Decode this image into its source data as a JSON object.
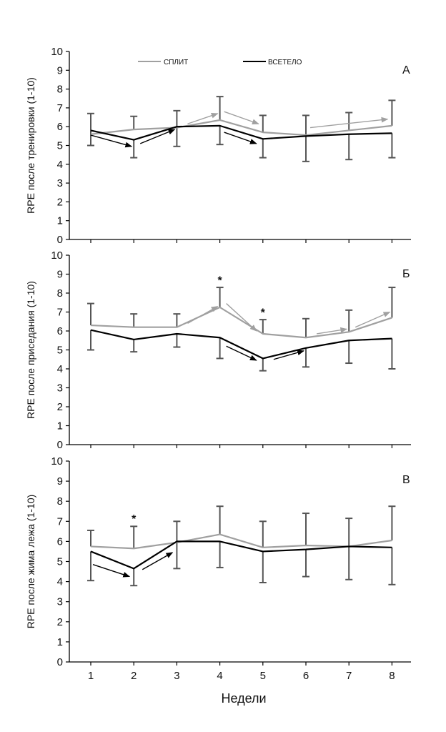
{
  "x_label": "Недели",
  "legend": [
    {
      "label": "СПЛИТ",
      "color": "#a0a0a0"
    },
    {
      "label": "ВСЕТЕЛО",
      "color": "#000000"
    }
  ],
  "chart_data": [
    {
      "type": "line",
      "panel_letter": "А",
      "ylabel": "RPE после тренировки  (1-10)",
      "ylim": [
        0,
        10
      ],
      "x": [
        1,
        2,
        3,
        4,
        5,
        6,
        7,
        8
      ],
      "series": [
        {
          "name": "СПЛИТ",
          "color": "#a0a0a0",
          "values": [
            5.6,
            5.85,
            5.95,
            6.35,
            5.7,
            5.55,
            5.8,
            6.05
          ],
          "error_upper": [
            6.7,
            6.55,
            6.85,
            7.6,
            6.6,
            6.6,
            6.75,
            7.4
          ]
        },
        {
          "name": "ВСЕТЕЛО",
          "color": "#000000",
          "values": [
            5.8,
            5.3,
            6.0,
            6.05,
            5.35,
            5.5,
            5.6,
            5.65
          ],
          "error_lower": [
            5.0,
            4.35,
            4.95,
            5.05,
            4.35,
            4.15,
            4.25,
            4.35
          ]
        }
      ],
      "significance_marks": [],
      "trend_arrows": [
        {
          "series": "ВСЕТЕЛО",
          "from": [
            1.0,
            5.55
          ],
          "to": [
            1.95,
            4.95
          ]
        },
        {
          "series": "ВСЕТЕЛО",
          "from": [
            2.15,
            5.1
          ],
          "to": [
            2.95,
            5.85
          ]
        },
        {
          "series": "СПЛИТ",
          "from": [
            3.25,
            6.15
          ],
          "to": [
            3.95,
            6.7
          ]
        },
        {
          "series": "СПЛИТ",
          "from": [
            4.1,
            6.8
          ],
          "to": [
            4.9,
            6.15
          ]
        },
        {
          "series": "ВСЕТЕЛО",
          "from": [
            4.1,
            5.7
          ],
          "to": [
            4.85,
            5.1
          ]
        },
        {
          "series": "СПЛИТ",
          "from": [
            6.1,
            5.95
          ],
          "to": [
            7.9,
            6.4
          ]
        }
      ]
    },
    {
      "type": "line",
      "panel_letter": "Б",
      "ylabel": "RPE после приседания  (1-10)",
      "ylim": [
        0,
        10
      ],
      "x": [
        1,
        2,
        3,
        4,
        5,
        6,
        7,
        8
      ],
      "series": [
        {
          "name": "СПЛИТ",
          "color": "#a0a0a0",
          "values": [
            6.3,
            6.2,
            6.2,
            7.25,
            5.85,
            5.65,
            5.95,
            6.7
          ],
          "error_upper": [
            7.45,
            6.9,
            6.9,
            8.3,
            6.6,
            6.65,
            7.1,
            8.3
          ]
        },
        {
          "name": "ВСЕТЕЛО",
          "color": "#000000",
          "values": [
            6.05,
            5.55,
            5.85,
            5.65,
            4.55,
            5.1,
            5.5,
            5.6
          ],
          "error_lower": [
            5.0,
            4.9,
            5.15,
            4.55,
            3.9,
            4.1,
            4.3,
            4.0
          ]
        }
      ],
      "significance_marks": [
        {
          "x": 4,
          "y": 8.7,
          "label": "*"
        },
        {
          "x": 5,
          "y": 7.0,
          "label": "*"
        }
      ],
      "trend_arrows": [
        {
          "series": "СПЛИТ",
          "from": [
            3.25,
            6.4
          ],
          "to": [
            3.95,
            7.3
          ]
        },
        {
          "series": "СПЛИТ",
          "from": [
            4.15,
            7.45
          ],
          "to": [
            4.85,
            6.0
          ]
        },
        {
          "series": "ВСЕТЕЛО",
          "from": [
            4.15,
            5.2
          ],
          "to": [
            4.85,
            4.45
          ]
        },
        {
          "series": "ВСЕТЕЛО",
          "from": [
            5.25,
            4.5
          ],
          "to": [
            5.95,
            4.95
          ]
        },
        {
          "series": "СПЛИТ",
          "from": [
            6.25,
            5.85
          ],
          "to": [
            6.95,
            6.1
          ]
        },
        {
          "series": "СПЛИТ",
          "from": [
            7.15,
            6.2
          ],
          "to": [
            7.95,
            7.0
          ]
        }
      ]
    },
    {
      "type": "line",
      "panel_letter": "В",
      "ylabel": "RPE после жима лежа  (1-10)",
      "ylim": [
        0,
        10
      ],
      "x": [
        1,
        2,
        3,
        4,
        5,
        6,
        7,
        8
      ],
      "series": [
        {
          "name": "СПЛИТ",
          "color": "#a0a0a0",
          "values": [
            5.75,
            5.65,
            5.95,
            6.35,
            5.7,
            5.8,
            5.75,
            6.05
          ],
          "error_upper": [
            6.55,
            6.75,
            7.0,
            7.75,
            7.0,
            7.4,
            7.15,
            7.75
          ]
        },
        {
          "name": "ВСЕТЕЛО",
          "color": "#000000",
          "values": [
            5.5,
            4.65,
            6.0,
            6.0,
            5.5,
            5.6,
            5.75,
            5.7
          ],
          "error_lower": [
            4.05,
            3.8,
            4.65,
            4.7,
            3.95,
            4.25,
            4.1,
            3.85
          ]
        }
      ],
      "significance_marks": [
        {
          "x": 2,
          "y": 7.15,
          "label": "*"
        }
      ],
      "trend_arrows": [
        {
          "series": "ВСЕТЕЛО",
          "from": [
            1.05,
            4.85
          ],
          "to": [
            1.9,
            4.25
          ]
        },
        {
          "series": "ВСЕТЕЛО",
          "from": [
            2.2,
            4.6
          ],
          "to": [
            2.9,
            5.45
          ]
        }
      ]
    }
  ]
}
